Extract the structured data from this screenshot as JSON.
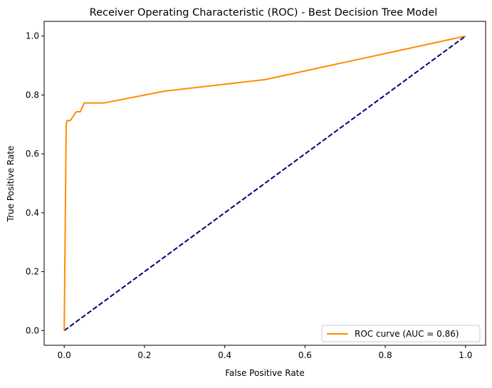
{
  "chart_data": {
    "type": "line",
    "title": "Receiver Operating Characteristic (ROC) - Best Decision Tree Model",
    "xlabel": "False Positive Rate",
    "ylabel": "True Positive Rate",
    "xlim": [
      -0.05,
      1.05
    ],
    "ylim": [
      -0.05,
      1.05
    ],
    "xticks": [
      0.0,
      0.2,
      0.4,
      0.6,
      0.8,
      1.0
    ],
    "yticks": [
      0.0,
      0.2,
      0.4,
      0.6,
      0.8,
      1.0
    ],
    "xtick_labels": [
      "0.0",
      "0.2",
      "0.4",
      "0.6",
      "0.8",
      "1.0"
    ],
    "ytick_labels": [
      "0.0",
      "0.2",
      "0.4",
      "0.6",
      "0.8",
      "1.0"
    ],
    "grid": false,
    "legend_position": "lower right",
    "series": [
      {
        "name": "ROC curve (AUC = 0.86)",
        "color": "#ff8c00",
        "style": "solid",
        "x": [
          0.0,
          0.005,
          0.007,
          0.015,
          0.03,
          0.04,
          0.05,
          0.1,
          0.25,
          0.5,
          1.0
        ],
        "y": [
          0.0,
          0.7,
          0.713,
          0.713,
          0.743,
          0.743,
          0.773,
          0.773,
          0.813,
          0.852,
          1.0
        ]
      },
      {
        "name": "",
        "color": "#000080",
        "style": "dashed",
        "x": [
          0.0,
          1.0
        ],
        "y": [
          0.0,
          1.0
        ]
      }
    ]
  }
}
